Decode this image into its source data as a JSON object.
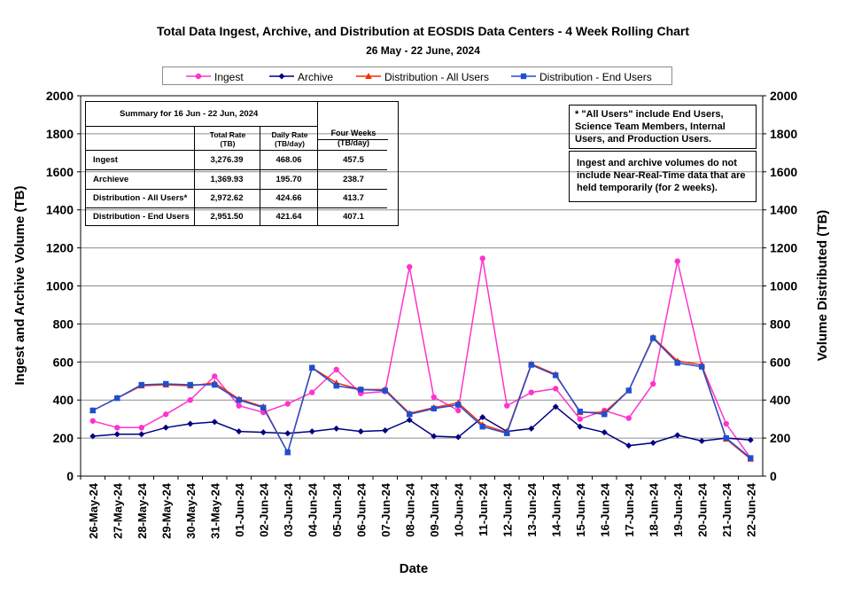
{
  "chart_data": {
    "type": "line",
    "title": "Total Data Ingest, Archive, and  Distribution at EOSDIS Data Centers - 4 Week Rolling Chart",
    "subtitle": "26  May   - 22  June,  2024",
    "xlabel": "Date",
    "ylabel": "Ingest and Archive Volume (TB)",
    "y2label": "Volume Distributed (TB)",
    "ylim": [
      0,
      2000
    ],
    "yticks": [
      "0",
      "200",
      "400",
      "600",
      "800",
      "1000",
      "1200",
      "1400",
      "1600",
      "1800",
      "2000"
    ],
    "grid": true,
    "legend_position": "top",
    "categories": [
      "26-May-24",
      "27-May-24",
      "28-May-24",
      "29-May-24",
      "30-May-24",
      "31-May-24",
      "01-Jun-24",
      "02-Jun-24",
      "03-Jun-24",
      "04-Jun-24",
      "05-Jun-24",
      "06-Jun-24",
      "07-Jun-24",
      "08-Jun-24",
      "09-Jun-24",
      "10-Jun-24",
      "11-Jun-24",
      "12-Jun-24",
      "13-Jun-24",
      "14-Jun-24",
      "15-Jun-24",
      "16-Jun-24",
      "17-Jun-24",
      "18-Jun-24",
      "19-Jun-24",
      "20-Jun-24",
      "21-Jun-24",
      "22-Jun-24"
    ],
    "series": [
      {
        "name": "Ingest",
        "color": "#ff33cc",
        "marker": "circle",
        "values": [
          290,
          255,
          255,
          325,
          400,
          525,
          370,
          335,
          380,
          440,
          560,
          435,
          445,
          1100,
          415,
          345,
          1145,
          370,
          440,
          460,
          300,
          345,
          305,
          485,
          1130,
          580,
          275,
          95
        ]
      },
      {
        "name": "Archive",
        "color": "#000080",
        "marker": "diamond",
        "values": [
          210,
          220,
          220,
          255,
          275,
          285,
          235,
          230,
          225,
          235,
          250,
          235,
          240,
          295,
          210,
          205,
          310,
          235,
          250,
          365,
          260,
          230,
          160,
          175,
          215,
          185,
          200,
          190
        ]
      },
      {
        "name": "Distribution - All Users",
        "color": "#ff2a00",
        "marker": "triangle",
        "values": [
          345,
          410,
          475,
          480,
          475,
          490,
          405,
          365,
          125,
          570,
          490,
          455,
          455,
          330,
          360,
          385,
          270,
          230,
          590,
          535,
          335,
          335,
          450,
          730,
          605,
          585,
          195,
          90
        ]
      },
      {
        "name": "Distribution - End Users",
        "color": "#1f4fd1",
        "marker": "square",
        "values": [
          345,
          410,
          480,
          485,
          480,
          480,
          400,
          360,
          125,
          570,
          475,
          455,
          450,
          325,
          355,
          375,
          260,
          225,
          585,
          530,
          340,
          325,
          450,
          725,
          595,
          575,
          200,
          95
        ]
      }
    ]
  },
  "summary_table": {
    "heading": "Summary  for  16  Jun   - 22  Jun,  2024",
    "col_total": "Total Rate\n(TB)",
    "col_daily": "Daily Rate\n(TB/day)",
    "col_four": "Four Weeks\n(TB/day)",
    "rows": [
      {
        "label": "Ingest",
        "total": "3,276.39",
        "daily": "468.06",
        "four": "457.5"
      },
      {
        "label": "Archieve",
        "total": "1,369.93",
        "daily": "195.70",
        "four": "238.7"
      },
      {
        "label": "Distribution - All Users*",
        "total": "2,972.62",
        "daily": "424.66",
        "four": "413.7"
      },
      {
        "label": "Distribution - End Users",
        "total": "2,951.50",
        "daily": "421.64",
        "four": "407.1"
      }
    ]
  },
  "notes": {
    "all_users": "* \"All Users\" include End Users, Science Team Members,  Internal Users, and Production Users.",
    "ingest_note": "Ingest and archive volumes do not include Near-Real-Time data that are held temporarily (for 2 weeks)."
  }
}
